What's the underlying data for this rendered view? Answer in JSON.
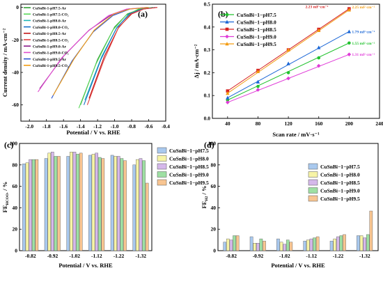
{
  "chart_data": [
    {
      "panel": "(a)",
      "type": "line",
      "xlabel": "Potential / V vs. RHE",
      "ylabel": "Current density / mA·cm⁻²",
      "xlim": [
        -2.1,
        -0.4
      ],
      "ylim": [
        -70,
        2
      ],
      "xticks": [
        -2.0,
        -1.8,
        -1.6,
        -1.4,
        -1.2,
        -1.0,
        -0.8,
        -0.6,
        -0.4
      ],
      "xtick_labels": [
        "-2.0",
        "-1.8",
        "-1.6",
        "-1.4",
        "-1.2",
        "-1.0",
        "-0.8",
        "-0.6",
        "-0.4"
      ],
      "yticks": [
        -60,
        -40,
        -20,
        0
      ],
      "ytick_labels": [
        "-60",
        "-40",
        "-20",
        "0"
      ],
      "series": [
        {
          "name": "CuSnBi-1-pH7.5-Ar",
          "color": "#2e9e35",
          "points": [
            [
              -1.4,
              -60
            ],
            [
              -1.2,
              -32
            ],
            [
              -1.0,
              -12
            ],
            [
              -0.85,
              -4
            ],
            [
              -0.7,
              -1
            ],
            [
              -0.55,
              0
            ]
          ]
        },
        {
          "name": "CuSnBi-1-pH7.5-CO₂",
          "color": "#5ad85a",
          "points": [
            [
              -1.42,
              -62
            ],
            [
              -1.22,
              -35
            ],
            [
              -1.02,
              -14
            ],
            [
              -0.87,
              -5
            ],
            [
              -0.72,
              -1
            ],
            [
              -0.55,
              0
            ]
          ]
        },
        {
          "name": "CuSnBi-1-pH8.0-Ar",
          "color": "#1fb6b6",
          "points": [
            [
              -1.35,
              -57
            ],
            [
              -1.15,
              -30
            ],
            [
              -0.97,
              -12
            ],
            [
              -0.82,
              -4
            ],
            [
              -0.67,
              -1
            ],
            [
              -0.52,
              0
            ]
          ]
        },
        {
          "name": "CuSnBi-1-pH8.0-CO₂",
          "color": "#1570c8",
          "points": [
            [
              -1.36,
              -60
            ],
            [
              -1.16,
              -32
            ],
            [
              -0.98,
              -13
            ],
            [
              -0.83,
              -4
            ],
            [
              -0.68,
              -1
            ],
            [
              -0.52,
              0
            ]
          ]
        },
        {
          "name": "CuSnBi-1-pH8.5-Ar",
          "color": "#c21515",
          "points": [
            [
              -1.3,
              -56
            ],
            [
              -1.12,
              -30
            ],
            [
              -0.95,
              -12
            ],
            [
              -0.8,
              -4
            ],
            [
              -0.66,
              -1
            ],
            [
              -0.5,
              0
            ]
          ]
        },
        {
          "name": "CuSnBi-1-pH8.5-CO₂",
          "color": "#e04040",
          "points": [
            [
              -1.32,
              -60
            ],
            [
              -1.13,
              -33
            ],
            [
              -0.96,
              -13
            ],
            [
              -0.81,
              -4
            ],
            [
              -0.66,
              -1
            ],
            [
              -0.5,
              0
            ]
          ]
        },
        {
          "name": "CuSnBi-1-pH9.0-Ar",
          "color": "#8a1a8a",
          "points": [
            [
              -1.88,
              -50
            ],
            [
              -1.6,
              -30
            ],
            [
              -1.3,
              -14
            ],
            [
              -1.05,
              -5
            ],
            [
              -0.85,
              -1
            ],
            [
              -0.62,
              0
            ]
          ]
        },
        {
          "name": "CuSnBi-1-pH9.0-CO₂",
          "color": "#e04fd0",
          "points": [
            [
              -1.9,
              -52
            ],
            [
              -1.62,
              -31
            ],
            [
              -1.32,
              -15
            ],
            [
              -1.07,
              -5
            ],
            [
              -0.86,
              -1
            ],
            [
              -0.62,
              0
            ]
          ]
        },
        {
          "name": "CuSnBi-1-pH9.5-Ar",
          "color": "#2a55d0",
          "points": [
            [
              -1.74,
              -56
            ],
            [
              -1.5,
              -33
            ],
            [
              -1.25,
              -15
            ],
            [
              -1.02,
              -5
            ],
            [
              -0.82,
              -1
            ],
            [
              -0.6,
              0
            ]
          ]
        },
        {
          "name": "CuSnBi-1-pH9.5-CO₂",
          "color": "#f39c12",
          "points": [
            [
              -1.72,
              -54
            ],
            [
              -1.48,
              -32
            ],
            [
              -1.24,
              -14
            ],
            [
              -1.01,
              -4
            ],
            [
              -0.82,
              -1
            ],
            [
              -0.6,
              0
            ]
          ]
        }
      ]
    },
    {
      "panel": "(b)",
      "type": "scatter",
      "xlabel": "Scan rate / mV·s⁻¹",
      "ylabel": "Δj / mA·cm⁻²",
      "xlim": [
        20,
        240
      ],
      "ylim": [
        0.0,
        0.5
      ],
      "xticks": [
        40,
        80,
        120,
        160,
        200,
        240
      ],
      "xtick_labels": [
        "40",
        "80",
        "120",
        "160",
        "200",
        "240"
      ],
      "yticks": [
        0.0,
        0.1,
        0.2,
        0.3,
        0.4,
        0.5
      ],
      "ytick_labels": [
        "0.0",
        "0.1",
        "0.2",
        "0.3",
        "0.4",
        "0.5"
      ],
      "x": [
        40,
        80,
        120,
        160,
        200
      ],
      "series": [
        {
          "name": "CuSnBi−1−pH7.5",
          "color": "#22c22e",
          "marker": "circle",
          "values": [
            0.08,
            0.14,
            0.2,
            0.265,
            0.33
          ],
          "annotation": "1.55 mF·cm⁻²"
        },
        {
          "name": "CuSnBi−1−pH8.0",
          "color": "#1a66d6",
          "marker": "triangle",
          "values": [
            0.09,
            0.16,
            0.24,
            0.31,
            0.38
          ],
          "annotation": "1.79 mF·cm⁻²"
        },
        {
          "name": "CuSnBi−1−pH8.5",
          "color": "#d62020",
          "marker": "square",
          "values": [
            0.12,
            0.21,
            0.3,
            0.39,
            0.48
          ],
          "annotation": "2.23 mF·cm⁻²"
        },
        {
          "name": "CuSnBi−1−pH9.0",
          "color": "#e03ad8",
          "marker": "diamond",
          "values": [
            0.07,
            0.125,
            0.175,
            0.23,
            0.28
          ],
          "annotation": "1.31 mF·cm⁻²"
        },
        {
          "name": "CuSnBi−1−pH9.5",
          "color": "#f39c12",
          "marker": "triangle",
          "values": [
            0.11,
            0.205,
            0.3,
            0.385,
            0.475
          ],
          "annotation": "2.25 mF·cm⁻²"
        }
      ]
    },
    {
      "panel": "(c)",
      "type": "bar",
      "xlabel": "Potential / V vs. RHE",
      "ylabel": "FE",
      "ylabel_sub": "HCOO-",
      "ylabel_unit": "/ %",
      "ylim": [
        0,
        100
      ],
      "yticks": [
        0,
        20,
        40,
        60,
        80,
        100
      ],
      "ytick_labels": [
        "0",
        "20",
        "40",
        "60",
        "80",
        "100"
      ],
      "categories": [
        "-0.82",
        "-0.92",
        "-1.02",
        "-1.12",
        "-1.22",
        "-1.32"
      ],
      "series": [
        {
          "name": "CuSnBi−1−pH7.5",
          "color": "#a9c9ee",
          "values": [
            81,
            86,
            88,
            89,
            89,
            80
          ]
        },
        {
          "name": "CuSnBi−1−pH8.0",
          "color": "#f7f4a6",
          "values": [
            82,
            91,
            92,
            90,
            88,
            85
          ]
        },
        {
          "name": "CuSnBi−1−pH8.5",
          "color": "#d5b8ea",
          "values": [
            85,
            92,
            92,
            91,
            88,
            86
          ]
        },
        {
          "name": "CuSnBi−1−pH9.0",
          "color": "#9ee0a3",
          "values": [
            85,
            88,
            90,
            87,
            86,
            84
          ]
        },
        {
          "name": "CuSnBi−1−pH9.5",
          "color": "#f8c591",
          "values": [
            85,
            88,
            91,
            86,
            84,
            63
          ]
        }
      ]
    },
    {
      "panel": "(d)",
      "type": "bar",
      "xlabel": "Potential / V vs. RHE",
      "ylabel": "FE",
      "ylabel_sub": "H2",
      "ylabel_unit": "/ %",
      "ylim": [
        0,
        100
      ],
      "yticks": [
        0,
        20,
        40,
        60,
        80,
        100
      ],
      "ytick_labels": [
        "0",
        "20",
        "40",
        "60",
        "80",
        "100"
      ],
      "categories": [
        "-0.82",
        "-0.92",
        "-1.02",
        "-1.12",
        "-1.22",
        "-1.32"
      ],
      "series": [
        {
          "name": "CuSnBi−1−pH7.5",
          "color": "#a9c9ee",
          "values": [
            8,
            13,
            11,
            9,
            9,
            14
          ]
        },
        {
          "name": "CuSnBi−1−pH8.0",
          "color": "#f7f4a6",
          "values": [
            11,
            7,
            8,
            10,
            11,
            14
          ]
        },
        {
          "name": "CuSnBi−1−pH8.5",
          "color": "#d5b8ea",
          "values": [
            10,
            7,
            6,
            11,
            13,
            12
          ]
        },
        {
          "name": "CuSnBi−1−pH9.0",
          "color": "#9ee0a3",
          "values": [
            14,
            11,
            10,
            12,
            14,
            15
          ]
        },
        {
          "name": "CuSnBi−1−pH9.5",
          "color": "#f8c591",
          "values": [
            14,
            9,
            8,
            13,
            15,
            37
          ]
        }
      ]
    }
  ]
}
